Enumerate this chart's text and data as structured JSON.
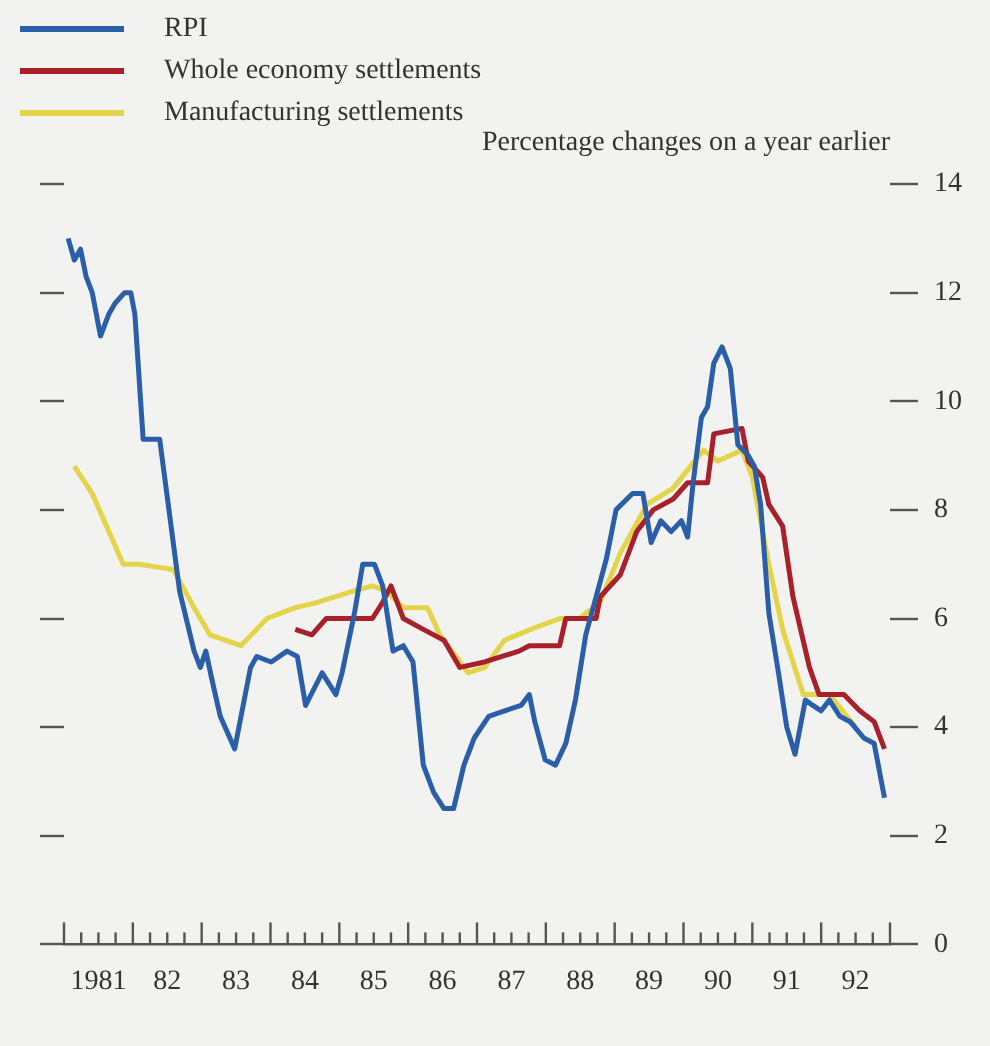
{
  "chart_data": {
    "type": "line",
    "ylabel": "Percentage changes on a year earlier",
    "legend": "top left",
    "grid": false,
    "marker": "none",
    "line_style": "solid",
    "xlim": [
      1980.5,
      1992.5
    ],
    "ylim": [
      0,
      14
    ],
    "yticks": [
      0,
      2,
      4,
      6,
      8,
      10,
      12,
      14
    ],
    "xticks": [
      {
        "value": 1980.5,
        "label": null
      },
      {
        "value": 1980.75,
        "label": null
      },
      {
        "value": 1981,
        "label": "1981"
      },
      {
        "value": 1981.25,
        "label": null
      },
      {
        "value": 1981.5,
        "label": null
      },
      {
        "value": 1981.75,
        "label": null
      },
      {
        "value": 1982,
        "label": "82"
      },
      {
        "value": 1982.25,
        "label": null
      },
      {
        "value": 1982.5,
        "label": null
      },
      {
        "value": 1982.75,
        "label": null
      },
      {
        "value": 1983,
        "label": "83"
      },
      {
        "value": 1983.25,
        "label": null
      },
      {
        "value": 1983.5,
        "label": null
      },
      {
        "value": 1983.75,
        "label": null
      },
      {
        "value": 1984,
        "label": "84"
      },
      {
        "value": 1984.25,
        "label": null
      },
      {
        "value": 1984.5,
        "label": null
      },
      {
        "value": 1984.75,
        "label": null
      },
      {
        "value": 1985,
        "label": "85"
      },
      {
        "value": 1985.25,
        "label": null
      },
      {
        "value": 1985.5,
        "label": null
      },
      {
        "value": 1985.75,
        "label": null
      },
      {
        "value": 1986,
        "label": "86"
      },
      {
        "value": 1986.25,
        "label": null
      },
      {
        "value": 1986.5,
        "label": null
      },
      {
        "value": 1986.75,
        "label": null
      },
      {
        "value": 1987,
        "label": "87"
      },
      {
        "value": 1987.25,
        "label": null
      },
      {
        "value": 1987.5,
        "label": null
      },
      {
        "value": 1987.75,
        "label": null
      },
      {
        "value": 1988,
        "label": "88"
      },
      {
        "value": 1988.25,
        "label": null
      },
      {
        "value": 1988.5,
        "label": null
      },
      {
        "value": 1988.75,
        "label": null
      },
      {
        "value": 1989,
        "label": "89"
      },
      {
        "value": 1989.25,
        "label": null
      },
      {
        "value": 1989.5,
        "label": null
      },
      {
        "value": 1989.75,
        "label": null
      },
      {
        "value": 1990,
        "label": "90"
      },
      {
        "value": 1990.25,
        "label": null
      },
      {
        "value": 1990.5,
        "label": null
      },
      {
        "value": 1990.75,
        "label": null
      },
      {
        "value": 1991,
        "label": "91"
      },
      {
        "value": 1991.25,
        "label": null
      },
      {
        "value": 1991.5,
        "label": null
      },
      {
        "value": 1991.75,
        "label": null
      },
      {
        "value": 1992,
        "label": "92"
      },
      {
        "value": 1992.25,
        "label": null
      },
      {
        "value": 1992.5,
        "label": null
      }
    ],
    "series": [
      {
        "name": "RPI",
        "color": "#2a5ea8",
        "x": [
          1980.56,
          1980.65,
          1980.74,
          1980.82,
          1980.91,
          1981.03,
          1981.15,
          1981.24,
          1981.38,
          1981.47,
          1981.53,
          1981.65,
          1981.89,
          1982.18,
          1982.39,
          1982.48,
          1982.56,
          1982.68,
          1982.77,
          1982.98,
          1983.21,
          1983.3,
          1983.51,
          1983.74,
          1983.89,
          1984.01,
          1984.25,
          1984.45,
          1984.54,
          1984.72,
          1984.84,
          1985.01,
          1985.13,
          1985.28,
          1985.43,
          1985.57,
          1985.72,
          1985.87,
          1986.02,
          1986.16,
          1986.31,
          1986.46,
          1986.67,
          1986.9,
          1987.14,
          1987.26,
          1987.34,
          1987.49,
          1987.64,
          1987.79,
          1987.93,
          1988.08,
          1988.23,
          1988.38,
          1988.52,
          1988.76,
          1988.91,
          1989.03,
          1989.17,
          1989.32,
          1989.47,
          1989.56,
          1989.64,
          1989.76,
          1989.85,
          1989.94,
          1990.06,
          1990.18,
          1990.29,
          1990.44,
          1990.53,
          1990.62,
          1990.74,
          1990.88,
          1991,
          1991.12,
          1991.27,
          1991.38,
          1991.5,
          1991.62,
          1991.77,
          1991.92,
          1992.12,
          1992.27,
          1992.42
        ],
        "values": [
          13.0,
          12.6,
          12.8,
          12.3,
          12.0,
          11.2,
          11.6,
          11.8,
          12.0,
          12.0,
          11.6,
          9.3,
          9.3,
          6.5,
          5.4,
          5.1,
          5.4,
          4.7,
          4.2,
          3.6,
          5.1,
          5.3,
          5.2,
          5.4,
          5.3,
          4.4,
          5.0,
          4.6,
          5.0,
          6.1,
          7.0,
          7.0,
          6.6,
          5.4,
          5.5,
          5.2,
          3.3,
          2.8,
          2.5,
          2.5,
          3.3,
          3.8,
          4.2,
          4.3,
          4.4,
          4.6,
          4.1,
          3.4,
          3.3,
          3.7,
          4.5,
          5.7,
          6.4,
          7.1,
          8.0,
          8.3,
          8.3,
          7.4,
          7.8,
          7.6,
          7.8,
          7.5,
          8.5,
          9.7,
          9.9,
          10.7,
          11.0,
          10.6,
          9.2,
          9.0,
          8.8,
          8.1,
          6.1,
          5.0,
          4.0,
          3.5,
          4.5,
          4.4,
          4.3,
          4.5,
          4.2,
          4.1,
          3.8,
          3.7,
          2.7
        ]
      },
      {
        "name": "Whole economy settlements",
        "color": "#a8202a",
        "x": [
          1983.86,
          1984.1,
          1984.31,
          1984.98,
          1985.13,
          1985.25,
          1985.43,
          1985.72,
          1986.02,
          1986.25,
          1986.61,
          1987.11,
          1987.26,
          1987.7,
          1987.79,
          1988.23,
          1988.29,
          1988.58,
          1988.82,
          1989.06,
          1989.35,
          1989.56,
          1989.85,
          1989.94,
          1990.35,
          1990.44,
          1990.65,
          1990.74,
          1990.94,
          1991.09,
          1991.33,
          1991.47,
          1991.83,
          1992.06,
          1992.27,
          1992.42
        ],
        "values": [
          5.8,
          5.7,
          6.0,
          6.0,
          6.3,
          6.6,
          6.0,
          5.8,
          5.6,
          5.1,
          5.2,
          5.4,
          5.5,
          5.5,
          6.0,
          6.0,
          6.4,
          6.8,
          7.6,
          8.0,
          8.2,
          8.5,
          8.5,
          9.4,
          9.5,
          8.9,
          8.6,
          8.1,
          7.7,
          6.4,
          5.1,
          4.6,
          4.6,
          4.3,
          4.1,
          3.6
        ]
      },
      {
        "name": "Manufacturing settlements",
        "color": "#e3d44a",
        "x": [
          1980.65,
          1980.91,
          1981.36,
          1981.59,
          1982.09,
          1982.39,
          1982.62,
          1983.07,
          1983.45,
          1983.86,
          1984.19,
          1984.69,
          1984.98,
          1985.19,
          1985.43,
          1985.78,
          1985.96,
          1986.37,
          1986.61,
          1986.9,
          1987.28,
          1987.7,
          1987.99,
          1988.29,
          1988.58,
          1988.97,
          1989.35,
          1989.79,
          1990,
          1990.35,
          1990.5,
          1990.74,
          1990.94,
          1991.24,
          1991.62,
          1992
        ],
        "values": [
          8.8,
          8.3,
          7.0,
          7.0,
          6.9,
          6.2,
          5.7,
          5.5,
          6.0,
          6.2,
          6.3,
          6.5,
          6.6,
          6.5,
          6.2,
          6.2,
          5.7,
          5.0,
          5.1,
          5.6,
          5.8,
          6.0,
          6.0,
          6.3,
          7.2,
          8.1,
          8.4,
          9.1,
          8.9,
          9.1,
          8.6,
          7.0,
          5.8,
          4.6,
          4.6,
          4.0
        ]
      }
    ]
  }
}
